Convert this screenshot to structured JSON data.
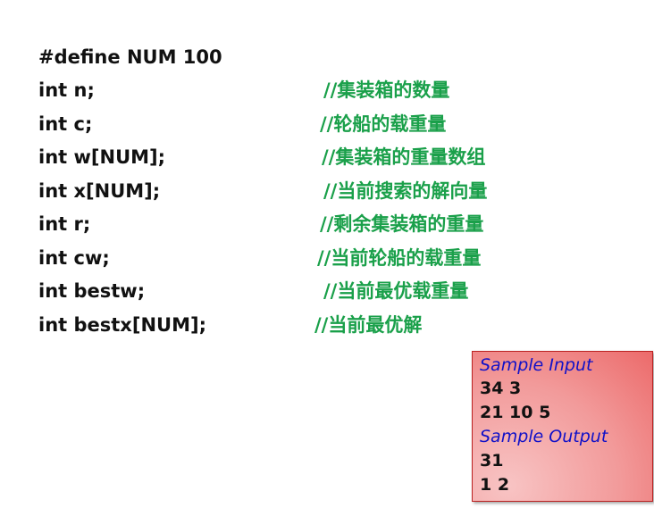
{
  "code": [
    {
      "code": "#define NUM 100",
      "comment": ""
    },
    {
      "code": "int n;",
      "comment": "//集装箱的数量"
    },
    {
      "code": "int c;",
      "comment": "//轮船的载重量"
    },
    {
      "code": "int w[NUM];",
      "comment": "//集装箱的重量数组"
    },
    {
      "code": "int x[NUM];",
      "comment": "//当前搜索的解向量"
    },
    {
      "code": "int r;",
      "comment": "//剩余集装箱的重量"
    },
    {
      "code": "int cw;",
      "comment": "//当前轮船的载重量"
    },
    {
      "code": "int bestw;",
      "comment": "//当前最优载重量"
    },
    {
      "code": "int bestx[NUM];",
      "comment": "//当前最优解"
    }
  ],
  "sample": {
    "input_label": "Sample Input",
    "input_lines": [
      "34 3",
      "21 10  5"
    ],
    "output_label": "Sample Output",
    "output_lines": [
      "31",
      "1  2"
    ]
  },
  "colors": {
    "comment": "#1aa04a",
    "sample_label": "#1010c8",
    "box": "#f29a9a"
  }
}
